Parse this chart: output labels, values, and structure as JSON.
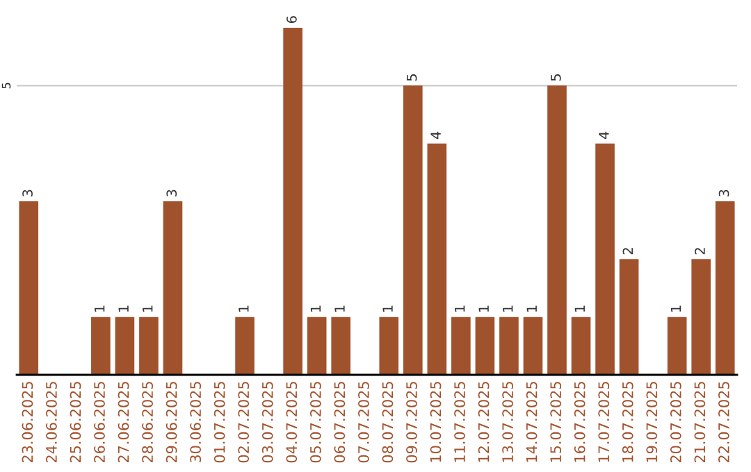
{
  "chart_data": {
    "type": "bar",
    "categories": [
      "23.06.2025",
      "24.06.2025",
      "25.06.2025",
      "26.06.2025",
      "27.06.2025",
      "28.06.2025",
      "29.06.2025",
      "30.06.2025",
      "01.07.2025",
      "02.07.2025",
      "03.07.2025",
      "04.07.2025",
      "05.07.2025",
      "06.07.2025",
      "07.07.2025",
      "08.07.2025",
      "09.07.2025",
      "10.07.2025",
      "11.07.2025",
      "12.07.2025",
      "13.07.2025",
      "14.07.2025",
      "15.07.2025",
      "16.07.2025",
      "17.07.2025",
      "18.07.2025",
      "19.07.2025",
      "20.07.2025",
      "21.07.2025",
      "22.07.2025"
    ],
    "values": [
      3,
      0,
      0,
      1,
      1,
      1,
      3,
      0,
      0,
      1,
      0,
      6,
      1,
      1,
      0,
      1,
      5,
      4,
      1,
      1,
      1,
      1,
      5,
      1,
      4,
      2,
      0,
      1,
      2,
      3
    ],
    "value_labels": [
      "3",
      null,
      null,
      "1",
      "1",
      "1",
      "3",
      null,
      null,
      "1",
      null,
      "6",
      "1",
      "1",
      null,
      "1",
      "5",
      "4",
      "1",
      "1",
      "1",
      "1",
      "5",
      "1",
      "4",
      "2",
      null,
      "1",
      "2",
      "3"
    ],
    "color": "#a0522d",
    "ylim": [
      0,
      6
    ],
    "yticks": [
      5
    ],
    "grid": "y"
  }
}
